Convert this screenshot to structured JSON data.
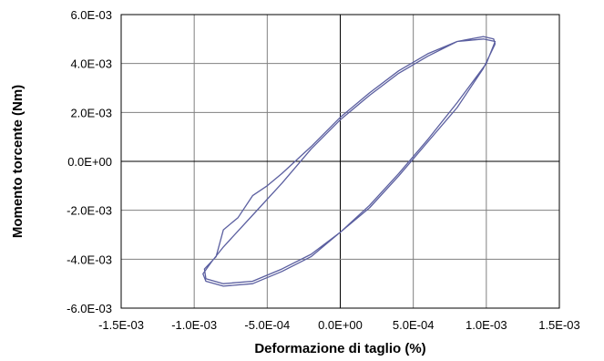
{
  "chart_data": {
    "type": "line",
    "title": "",
    "xlabel": "Deformazione di taglio (%)",
    "ylabel": "Momento torcente (Nm)",
    "xlim": [
      -0.0015,
      0.0015
    ],
    "ylim": [
      -0.006,
      0.006
    ],
    "x_ticks": [
      -0.0015,
      -0.001,
      -0.0005,
      0,
      0.0005,
      0.001,
      0.0015
    ],
    "y_ticks": [
      -0.006,
      -0.004,
      -0.002,
      0,
      0.002,
      0.004,
      0.006
    ],
    "x_tick_labels": [
      "-1.5E-03",
      "-1.0E-03",
      "-5.0E-04",
      "0.0E+00",
      "5.0E-04",
      "1.0E-03",
      "1.5E-03"
    ],
    "y_tick_labels": [
      "-6.0E-03",
      "-4.0E-03",
      "-2.0E-03",
      "0.0E+00",
      "2.0E-03",
      "4.0E-03",
      "6.0E-03"
    ],
    "grid": {
      "x_major": true,
      "y_major": true,
      "zero_lines": true
    },
    "legend": "none",
    "colors": {
      "series": "#5b5fa0",
      "grid": "#808080",
      "axis": "#000000"
    },
    "series": [
      {
        "x": [
          0.00106,
          0.00098,
          0.0008,
          0.0006,
          0.0004,
          0.0002,
          0.0,
          -0.0002,
          -0.0004,
          -0.0006,
          -0.0008,
          -0.00092,
          -0.00094,
          -0.00088,
          -0.0008,
          -0.0006,
          -0.0004,
          -0.0002,
          0.0,
          0.0002,
          0.0004,
          0.0006,
          0.0008,
          0.00098,
          0.00106,
          0.001,
          0.0008,
          0.0006,
          0.0004,
          0.0002,
          0.0,
          -0.0002,
          -0.0004,
          -0.0006,
          -0.0008,
          -0.00092,
          -0.00093,
          -0.00085,
          -0.0008,
          -0.0007,
          -0.0006,
          -0.0005,
          -0.0004,
          -0.0002,
          0.0,
          0.0002,
          0.0004,
          0.0006,
          0.0008,
          0.00098,
          0.00105,
          0.00106
        ],
        "y": [
          0.0048,
          0.0038,
          0.0022,
          0.0008,
          -0.0006,
          -0.0019,
          -0.0029,
          -0.0039,
          -0.0045,
          -0.005,
          -0.0051,
          -0.0049,
          -0.0046,
          -0.0041,
          -0.0035,
          -0.0022,
          -0.0009,
          0.0005,
          0.0017,
          0.0027,
          0.0036,
          0.0043,
          0.0049,
          0.005,
          0.0049,
          0.004,
          0.0024,
          0.0009,
          -0.0005,
          -0.0018,
          -0.0029,
          -0.0038,
          -0.0044,
          -0.0049,
          -0.005,
          -0.0048,
          -0.0044,
          -0.0039,
          -0.0028,
          -0.0023,
          -0.0014,
          -0.001,
          -0.0005,
          0.0006,
          0.0018,
          0.0028,
          0.0037,
          0.0044,
          0.0049,
          0.0051,
          0.005,
          0.0048
        ]
      }
    ]
  }
}
